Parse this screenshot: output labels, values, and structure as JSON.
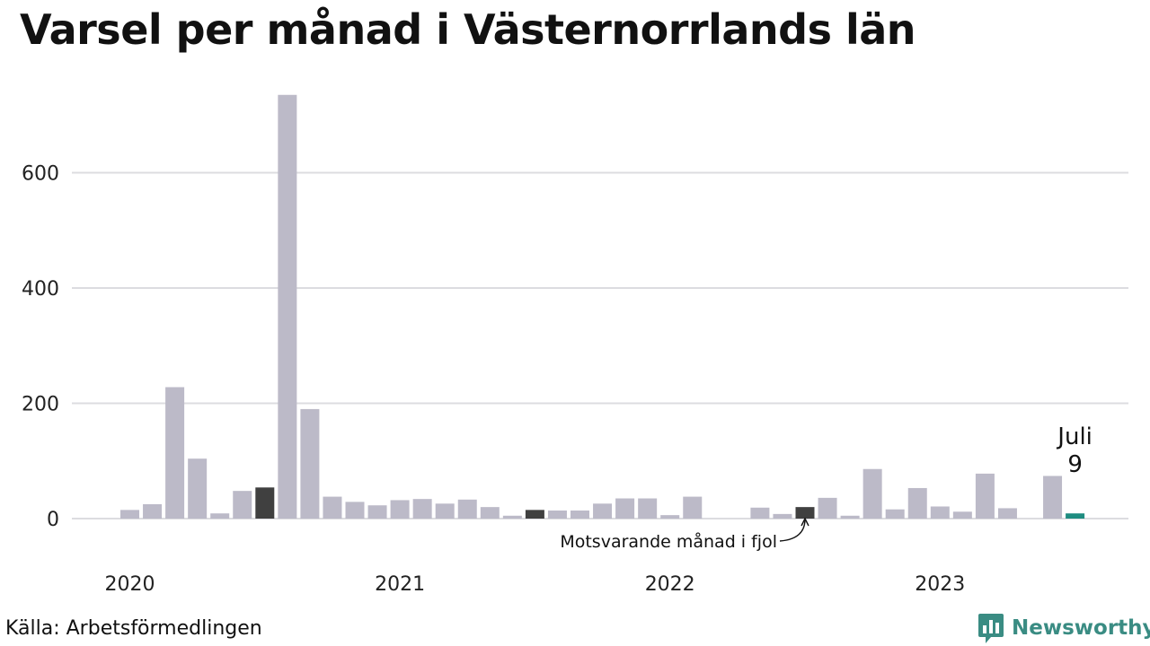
{
  "title": "Varsel per månad i Västernorrlands län",
  "source": "Källa: Arbetsförmedlingen",
  "brand": {
    "name": "Newsworthy",
    "icon": "newsworthy-logo-icon",
    "color": "#3a8c83"
  },
  "chart_data": {
    "type": "bar",
    "title": "Varsel per månad i Västernorrlands län",
    "xlabel": "",
    "ylabel": "",
    "ylim": [
      0,
      750
    ],
    "yticks": [
      0,
      200,
      400,
      600
    ],
    "grid": true,
    "x_start": "2020-01",
    "year_labels": [
      "2020",
      "2021",
      "2022",
      "2023"
    ],
    "categories": [
      "2020-01",
      "2020-02",
      "2020-03",
      "2020-04",
      "2020-05",
      "2020-06",
      "2020-07",
      "2020-08",
      "2020-09",
      "2020-10",
      "2020-11",
      "2020-12",
      "2021-01",
      "2021-02",
      "2021-03",
      "2021-04",
      "2021-05",
      "2021-06",
      "2021-07",
      "2021-08",
      "2021-09",
      "2021-10",
      "2021-11",
      "2021-12",
      "2022-01",
      "2022-02",
      "2022-03",
      "2022-04",
      "2022-05",
      "2022-06",
      "2022-07",
      "2022-08",
      "2022-09",
      "2022-10",
      "2022-11",
      "2022-12",
      "2023-01",
      "2023-02",
      "2023-03",
      "2023-04",
      "2023-05",
      "2023-06",
      "2023-07"
    ],
    "values": [
      15,
      25,
      228,
      104,
      9,
      48,
      54,
      735,
      190,
      38,
      29,
      23,
      32,
      34,
      26,
      33,
      20,
      5,
      15,
      14,
      14,
      26,
      35,
      35,
      6,
      38,
      0,
      0,
      19,
      8,
      20,
      36,
      5,
      86,
      16,
      53,
      21,
      12,
      78,
      18,
      0,
      74,
      9
    ],
    "highlight_index": 42,
    "comparison_indices": [
      6,
      18,
      30
    ],
    "colors": {
      "default": "#bcbac8",
      "comparison": "#404040",
      "highlight": "#1e8c80",
      "grid": "#dcdce0"
    },
    "highlight_label": {
      "month": "Juli",
      "value": "9"
    },
    "annotation": {
      "text": "Motsvarande månad i fjol",
      "target_index": 30
    }
  }
}
